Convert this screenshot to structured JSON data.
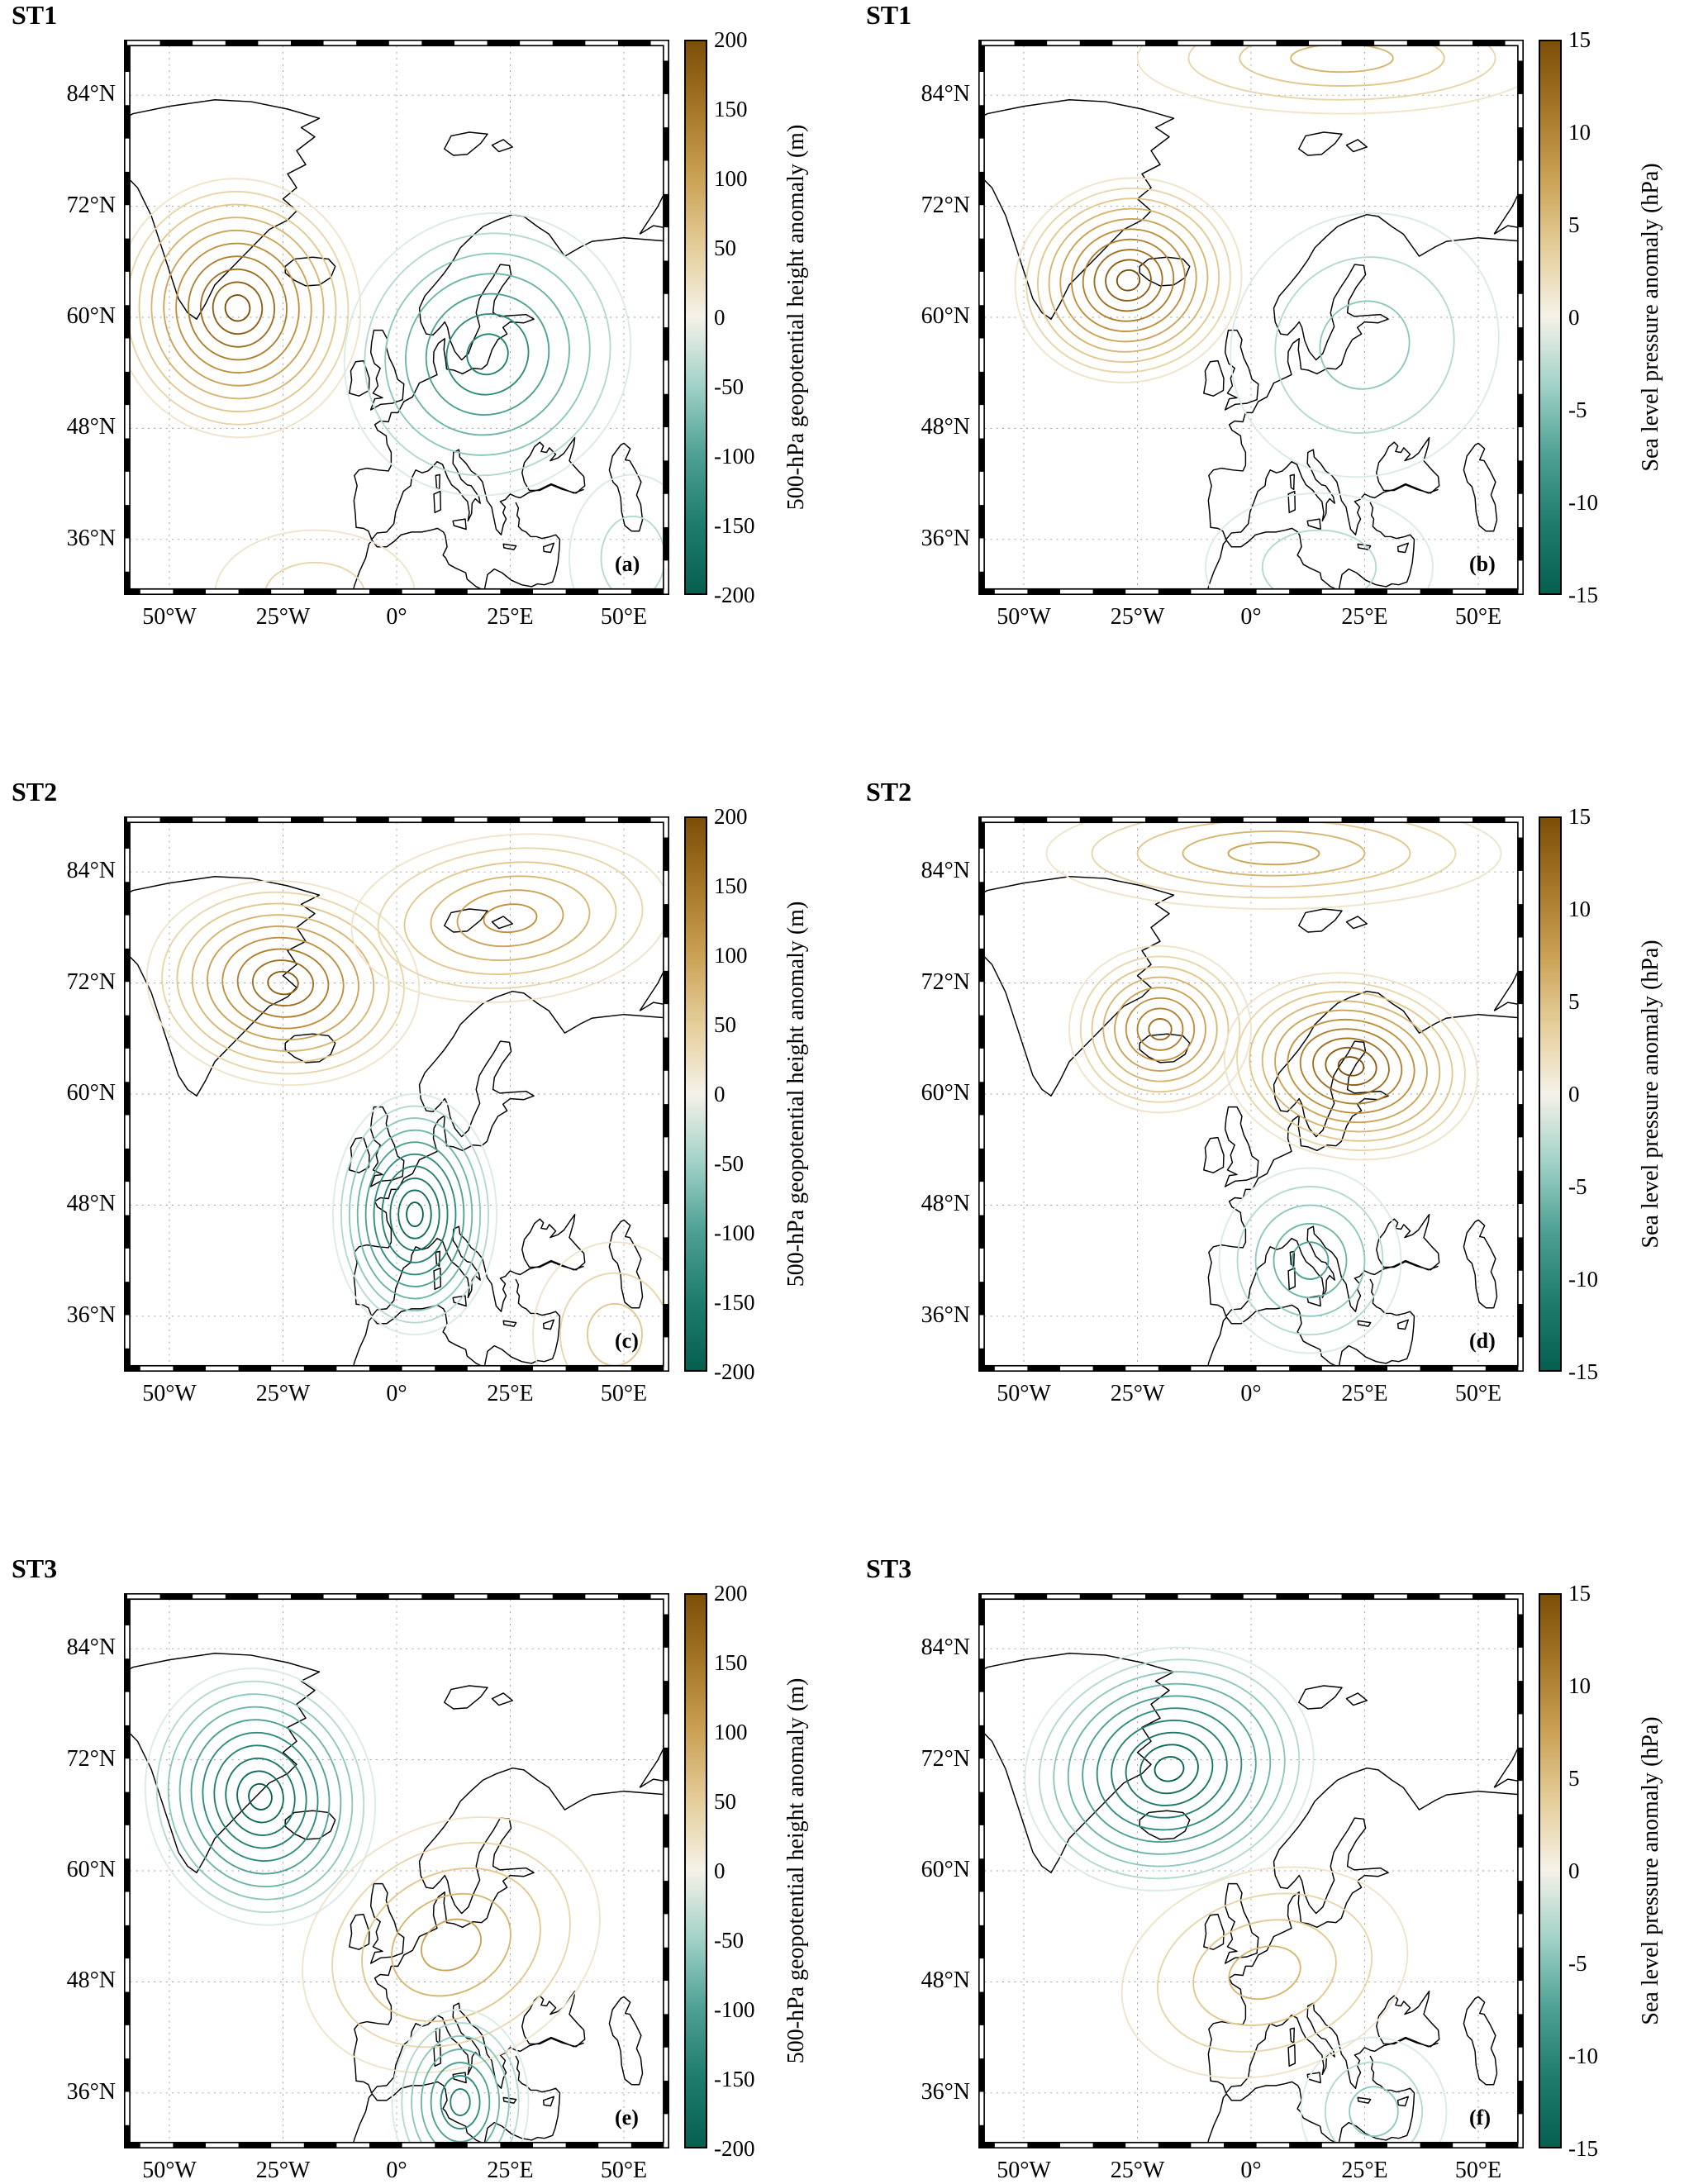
{
  "colors": {
    "positive_max": "#7c4e08",
    "negative_max": "#06604f",
    "midpoint": "#f5f2e8",
    "coastline": "#000000",
    "grid": "#999999"
  },
  "axes": {
    "lon_range": [
      -60,
      60
    ],
    "lat_range": [
      30,
      90
    ],
    "grid": "dotted",
    "x_ticks": [
      {
        "value": -50,
        "label": "50°W"
      },
      {
        "value": -25,
        "label": "25°W"
      },
      {
        "value": 0,
        "label": "0°"
      },
      {
        "value": 25,
        "label": "25°E"
      },
      {
        "value": 50,
        "label": "50°E"
      }
    ],
    "y_ticks": [
      {
        "value": 84,
        "label": "84°N"
      },
      {
        "value": 72,
        "label": "72°N"
      },
      {
        "value": 60,
        "label": "60°N"
      },
      {
        "value": 48,
        "label": "48°N"
      },
      {
        "value": 36,
        "label": "36°N"
      }
    ]
  },
  "chart_data": [
    {
      "row_label": "ST1",
      "panel_letter": "(a)",
      "type": "contour",
      "variable": "500-hPa geopotential height anomaly",
      "units": "m",
      "contour_interval": 20,
      "colorbar": {
        "label": "500-hPa geopotential height anomaly (m)",
        "min": -200,
        "max": 200,
        "ticks": [
          200,
          150,
          100,
          50,
          0,
          -50,
          -100,
          -150,
          -200
        ]
      },
      "anomaly_centers": [
        {
          "lon": -35,
          "lat": 61,
          "amplitude": 200,
          "rlon": 27,
          "rlat": 14,
          "rot": -12
        },
        {
          "lon": 20,
          "lat": 56,
          "amplitude": -140,
          "rlon": 32,
          "rlat": 15,
          "rot": -30
        },
        {
          "lon": -18,
          "lat": 30,
          "amplitude": 40,
          "rlon": 22,
          "rlat": 7,
          "rot": 0
        },
        {
          "lon": 52,
          "lat": 34,
          "amplitude": -40,
          "rlon": 14,
          "rlat": 9,
          "rot": 0
        }
      ]
    },
    {
      "row_label": "ST1",
      "panel_letter": "(b)",
      "type": "contour",
      "variable": "Sea level pressure anomaly",
      "units": "hPa",
      "contour_interval": 1.5,
      "colorbar": {
        "label": "Sea level pressure anomaly (hPa)",
        "min": -15,
        "max": 15,
        "ticks": [
          15,
          10,
          5,
          0,
          -5,
          -10,
          -15
        ]
      },
      "anomaly_centers": [
        {
          "lon": -27,
          "lat": 64,
          "amplitude": 15,
          "rlon": 25,
          "rlat": 11,
          "rot": -10
        },
        {
          "lon": 25,
          "lat": 57,
          "amplitude": -5,
          "rlon": 30,
          "rlat": 14,
          "rot": -30
        },
        {
          "lon": 15,
          "lat": 33,
          "amplitude": -3,
          "rlon": 25,
          "rlat": 8,
          "rot": 0
        },
        {
          "lon": 20,
          "lat": 88,
          "amplitude": 6,
          "rlon": 45,
          "rlat": 6,
          "rot": 0
        }
      ]
    },
    {
      "row_label": "ST2",
      "panel_letter": "(c)",
      "type": "contour",
      "variable": "500-hPa geopotential height anomaly",
      "units": "m",
      "contour_interval": 20,
      "colorbar": {
        "label": "500-hPa geopotential height anomaly (m)",
        "min": -200,
        "max": 200,
        "ticks": [
          200,
          150,
          100,
          50,
          0,
          -50,
          -100,
          -150,
          -200
        ]
      },
      "anomaly_centers": [
        {
          "lon": -25,
          "lat": 72,
          "amplitude": 170,
          "rlon": 30,
          "rlat": 11,
          "rot": 5
        },
        {
          "lon": 25,
          "lat": 79,
          "amplitude": 120,
          "rlon": 35,
          "rlat": 9,
          "rot": -5
        },
        {
          "lon": 4,
          "lat": 47,
          "amplitude": -200,
          "rlon": 18,
          "rlat": 13,
          "rot": 0
        },
        {
          "lon": 48,
          "lat": 34,
          "amplitude": 50,
          "rlon": 18,
          "rlat": 10,
          "rot": 0
        }
      ]
    },
    {
      "row_label": "ST2",
      "panel_letter": "(d)",
      "type": "contour",
      "variable": "Sea level pressure anomaly",
      "units": "hPa",
      "contour_interval": 1.5,
      "colorbar": {
        "label": "Sea level pressure anomaly (hPa)",
        "min": -15,
        "max": 15,
        "ticks": [
          15,
          10,
          5,
          0,
          -5,
          -10,
          -15
        ]
      },
      "anomaly_centers": [
        {
          "lon": -20,
          "lat": 67,
          "amplitude": 12,
          "rlon": 20,
          "rlat": 9,
          "rot": 0
        },
        {
          "lon": 22,
          "lat": 63,
          "amplitude": 15,
          "rlon": 28,
          "rlat": 10,
          "rot": 8
        },
        {
          "lon": 13,
          "lat": 42,
          "amplitude": -8,
          "rlon": 20,
          "rlat": 10,
          "rot": 0
        },
        {
          "lon": 5,
          "lat": 86,
          "amplitude": 8,
          "rlon": 50,
          "rlat": 6,
          "rot": 0
        }
      ]
    },
    {
      "row_label": "ST3",
      "panel_letter": "(e)",
      "type": "contour",
      "variable": "500-hPa geopotential height anomaly",
      "units": "m",
      "contour_interval": 20,
      "colorbar": {
        "label": "500-hPa geopotential height anomaly (m)",
        "min": -200,
        "max": 200,
        "ticks": [
          200,
          150,
          100,
          50,
          0,
          -50,
          -100,
          -150,
          -200
        ]
      },
      "anomaly_centers": [
        {
          "lon": -30,
          "lat": 68,
          "amplitude": -200,
          "rlon": 25,
          "rlat": 14,
          "rot": -18
        },
        {
          "lon": 12,
          "lat": 52,
          "amplitude": 100,
          "rlon": 34,
          "rlat": 13,
          "rot": -25
        },
        {
          "lon": 14,
          "lat": 35,
          "amplitude": -130,
          "rlon": 15,
          "rlat": 10,
          "rot": 0
        }
      ]
    },
    {
      "row_label": "ST3",
      "panel_letter": "(f)",
      "type": "contour",
      "variable": "Sea level pressure anomaly",
      "units": "hPa",
      "contour_interval": 1.5,
      "colorbar": {
        "label": "Sea level pressure anomaly (hPa)",
        "min": -15,
        "max": 15,
        "ticks": [
          15,
          10,
          5,
          0,
          -5,
          -10,
          -15
        ]
      },
      "anomaly_centers": [
        {
          "lon": -18,
          "lat": 71,
          "amplitude": -15,
          "rlon": 32,
          "rlat": 13,
          "rot": -12
        },
        {
          "lon": 3,
          "lat": 49,
          "amplitude": 6,
          "rlon": 32,
          "rlat": 11,
          "rot": -15
        },
        {
          "lon": 27,
          "lat": 34,
          "amplitude": -4,
          "rlon": 16,
          "rlat": 8,
          "rot": 0
        }
      ]
    }
  ]
}
